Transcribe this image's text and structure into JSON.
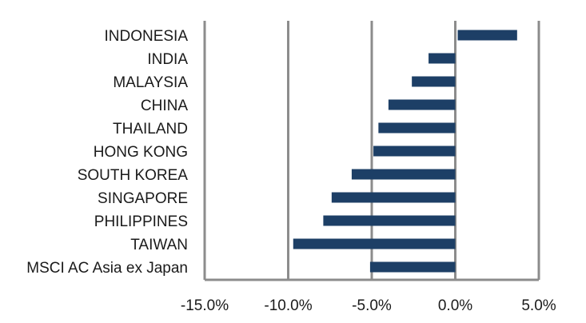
{
  "chart_data": {
    "type": "bar",
    "orientation": "horizontal",
    "title": "",
    "xlabel": "",
    "ylabel": "",
    "categories": [
      "INDONESIA",
      "INDIA",
      "MALAYSIA",
      "CHINA",
      "THAILAND",
      "HONG KONG",
      "SOUTH KOREA",
      "SINGAPORE",
      "PHILIPPINES",
      "TAIWAN",
      "MSCI AC Asia ex Japan"
    ],
    "values": [
      3.7,
      -1.6,
      -2.6,
      -4.0,
      -4.6,
      -4.9,
      -6.2,
      -7.4,
      -7.9,
      -9.7,
      -5.1
    ],
    "xlim": [
      -15,
      5
    ],
    "x_ticks": [
      -15,
      -10,
      -5,
      0,
      5
    ],
    "x_tick_labels": [
      "-15.0%",
      "-10.0%",
      "-5.0%",
      "0.0%",
      "5.0%"
    ],
    "grid": "vertical",
    "bar_color": "#1d3f66",
    "grid_color": "#8c8c8c"
  }
}
